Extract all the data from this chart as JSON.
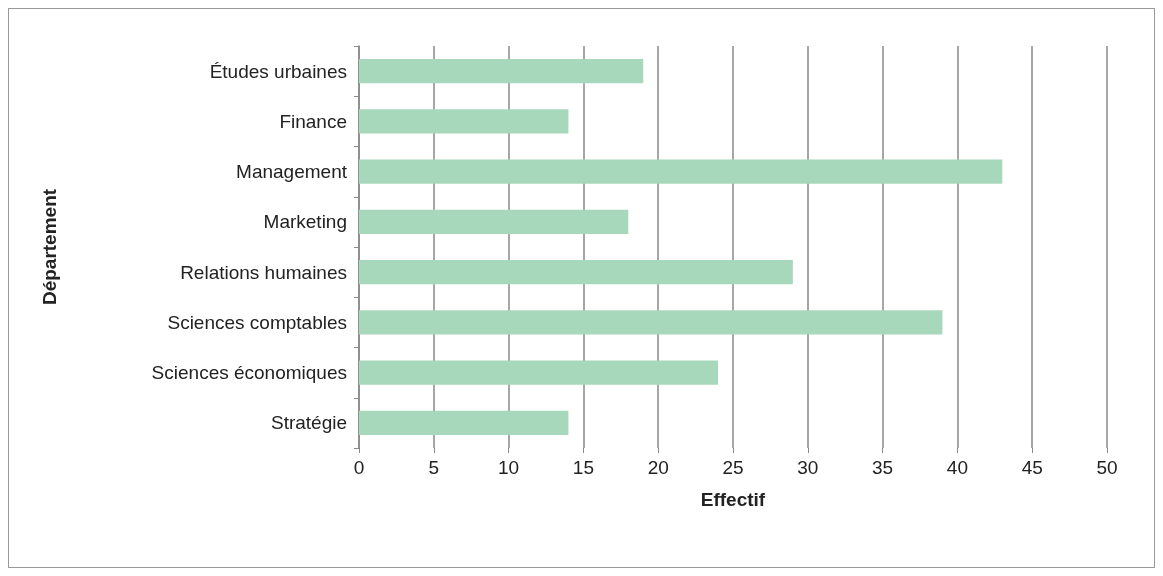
{
  "chart_data": {
    "type": "bar",
    "orientation": "horizontal",
    "xlabel": "Effectif",
    "ylabel": "Département",
    "categories": [
      "Études urbaines",
      "Finance",
      "Management",
      "Marketing",
      "Relations humaines",
      "Sciences comptables",
      "Sciences économiques",
      "Stratégie"
    ],
    "values": [
      19,
      14,
      43,
      18,
      29,
      39,
      24,
      14
    ],
    "color": "#a8d8bc",
    "xlim": [
      0,
      50
    ],
    "xticks": [
      0,
      5,
      10,
      15,
      20,
      25,
      30,
      35,
      40,
      45,
      50
    ],
    "grid": "x"
  }
}
